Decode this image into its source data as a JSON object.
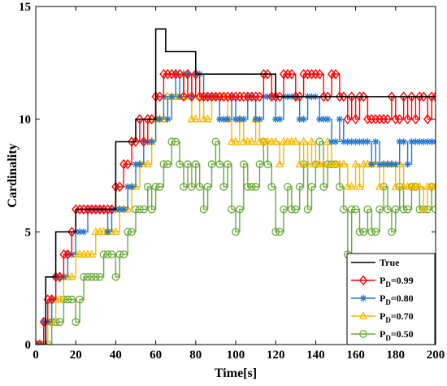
{
  "chart_data": {
    "type": "line",
    "xlabel": "Time[s]",
    "ylabel": "Cardinality",
    "xlim": [
      0,
      200
    ],
    "ylim": [
      0,
      15
    ],
    "xticks": [
      "0",
      "20",
      "40",
      "60",
      "80",
      "100",
      "120",
      "140",
      "160",
      "180",
      "200"
    ],
    "yticks": [
      "0",
      "5",
      "10",
      "15"
    ],
    "grid": false,
    "legend_position": "bottom-right",
    "series": [
      {
        "name": "True",
        "color": "#000000",
        "marker": "none",
        "x": [
          0,
          5,
          5,
          10,
          10,
          20,
          20,
          40,
          40,
          50,
          50,
          60,
          60,
          65,
          65,
          80,
          80,
          120,
          120,
          150,
          150,
          200
        ],
        "y": [
          0,
          0,
          3,
          3,
          5,
          5,
          6,
          6,
          9,
          9,
          10,
          10,
          14,
          14,
          13,
          13,
          12,
          12,
          11,
          11,
          11,
          11
        ]
      },
      {
        "name": "P_D=0.99",
        "color": "#ff0000",
        "marker": "diamond",
        "x": [
          0,
          2,
          4,
          6,
          8,
          10,
          12,
          14,
          16,
          18,
          20,
          22,
          24,
          26,
          28,
          30,
          32,
          34,
          36,
          38,
          40,
          42,
          44,
          46,
          48,
          50,
          52,
          54,
          56,
          58,
          60,
          62,
          64,
          66,
          68,
          70,
          72,
          74,
          76,
          78,
          80,
          82,
          84,
          86,
          88,
          90,
          92,
          94,
          96,
          98,
          100,
          102,
          104,
          106,
          108,
          110,
          112,
          114,
          116,
          118,
          120,
          122,
          124,
          126,
          128,
          130,
          132,
          134,
          136,
          138,
          140,
          142,
          144,
          146,
          148,
          150,
          152,
          154,
          156,
          158,
          160,
          162,
          164,
          166,
          168,
          170,
          172,
          174,
          176,
          178,
          180,
          182,
          184,
          186,
          188,
          190,
          192,
          194,
          196,
          198,
          200
        ],
        "y": [
          0,
          0,
          1,
          2,
          2,
          3,
          3,
          4,
          4,
          5,
          6,
          6,
          6,
          6,
          6,
          6,
          6,
          6,
          6,
          6,
          7,
          7,
          8,
          8,
          9,
          9,
          10,
          9,
          10,
          10,
          11,
          11,
          12,
          12,
          12,
          12,
          12,
          11,
          12,
          11,
          12,
          11,
          11,
          11,
          11,
          11,
          11,
          11,
          11,
          11,
          11,
          11,
          11,
          11,
          11,
          11,
          11,
          12,
          12,
          11,
          11,
          11,
          12,
          12,
          12,
          11,
          11,
          12,
          12,
          12,
          12,
          12,
          11,
          11,
          12,
          12,
          11,
          11,
          10,
          11,
          10,
          11,
          11,
          10,
          10,
          10,
          10,
          10,
          10,
          11,
          10,
          10,
          11,
          10,
          11,
          10,
          11,
          11,
          10,
          11,
          11
        ]
      },
      {
        "name": "P_D=0.80",
        "color": "#1f77d4",
        "marker": "asterisk",
        "x": [
          0,
          2,
          4,
          6,
          8,
          10,
          12,
          14,
          16,
          18,
          20,
          22,
          24,
          26,
          28,
          30,
          32,
          34,
          36,
          38,
          40,
          42,
          44,
          46,
          48,
          50,
          52,
          54,
          56,
          58,
          60,
          62,
          64,
          66,
          68,
          70,
          72,
          74,
          76,
          78,
          80,
          82,
          84,
          86,
          88,
          90,
          92,
          94,
          96,
          98,
          100,
          102,
          104,
          106,
          108,
          110,
          112,
          114,
          116,
          118,
          120,
          122,
          124,
          126,
          128,
          130,
          132,
          134,
          136,
          138,
          140,
          142,
          144,
          146,
          148,
          150,
          152,
          154,
          156,
          158,
          160,
          162,
          164,
          166,
          168,
          170,
          172,
          174,
          176,
          178,
          180,
          182,
          184,
          186,
          188,
          190,
          192,
          194,
          196,
          198,
          200
        ],
        "y": [
          0,
          0,
          1,
          1,
          2,
          3,
          3,
          3,
          4,
          4,
          5,
          5,
          5,
          6,
          6,
          6,
          6,
          6,
          5,
          6,
          6,
          6,
          6,
          7,
          7,
          8,
          8,
          9,
          9,
          9,
          10,
          10,
          11,
          10,
          11,
          12,
          11,
          12,
          12,
          11,
          12,
          12,
          11,
          11,
          11,
          11,
          10,
          10,
          10,
          11,
          10,
          10,
          10,
          11,
          11,
          10,
          10,
          11,
          11,
          11,
          10,
          10,
          11,
          11,
          11,
          11,
          10,
          10,
          11,
          11,
          11,
          10,
          10,
          10,
          9,
          9,
          10,
          9,
          9,
          9,
          9,
          9,
          9,
          9,
          8,
          9,
          8,
          8,
          8,
          8,
          8,
          9,
          9,
          8,
          9,
          9,
          9,
          9,
          9,
          9,
          9
        ]
      },
      {
        "name": "P_D=0.70",
        "color": "#f5b800",
        "marker": "triangle",
        "x": [
          0,
          2,
          4,
          6,
          8,
          10,
          12,
          14,
          16,
          18,
          20,
          22,
          24,
          26,
          28,
          30,
          32,
          34,
          36,
          38,
          40,
          42,
          44,
          46,
          48,
          50,
          52,
          54,
          56,
          58,
          60,
          62,
          64,
          66,
          68,
          70,
          72,
          74,
          76,
          78,
          80,
          82,
          84,
          86,
          88,
          90,
          92,
          94,
          96,
          98,
          100,
          102,
          104,
          106,
          108,
          110,
          112,
          114,
          116,
          118,
          120,
          122,
          124,
          126,
          128,
          130,
          132,
          134,
          136,
          138,
          140,
          142,
          144,
          146,
          148,
          150,
          152,
          154,
          156,
          158,
          160,
          162,
          164,
          166,
          168,
          170,
          172,
          174,
          176,
          178,
          180,
          182,
          184,
          186,
          188,
          190,
          192,
          194,
          196,
          198,
          200
        ],
        "y": [
          0,
          0,
          0,
          1,
          1,
          2,
          2,
          3,
          3,
          3,
          4,
          4,
          4,
          4,
          4,
          5,
          5,
          5,
          5,
          5,
          5,
          6,
          6,
          6,
          7,
          7,
          8,
          8,
          8,
          9,
          10,
          10,
          10,
          11,
          11,
          11,
          11,
          12,
          11,
          10,
          10,
          11,
          10,
          10,
          11,
          11,
          11,
          11,
          10,
          9,
          9,
          10,
          9,
          9,
          9,
          10,
          9,
          9,
          9,
          9,
          9,
          8,
          9,
          9,
          9,
          9,
          8,
          9,
          8,
          9,
          8,
          8,
          8,
          9,
          8,
          8,
          8,
          8,
          7,
          7,
          8,
          7,
          8,
          8,
          8,
          8,
          7,
          8,
          8,
          8,
          7,
          8,
          7,
          7,
          7,
          7,
          7,
          6,
          7,
          7,
          7
        ]
      },
      {
        "name": "P_D=0.50",
        "color": "#6aaa3a",
        "marker": "circle",
        "x": [
          0,
          2,
          4,
          6,
          8,
          10,
          12,
          14,
          16,
          18,
          20,
          22,
          24,
          26,
          28,
          30,
          32,
          34,
          36,
          38,
          40,
          42,
          44,
          46,
          48,
          50,
          52,
          54,
          56,
          58,
          60,
          62,
          64,
          66,
          68,
          70,
          72,
          74,
          76,
          78,
          80,
          82,
          84,
          86,
          88,
          90,
          92,
          94,
          96,
          98,
          100,
          102,
          104,
          106,
          108,
          110,
          112,
          114,
          116,
          118,
          120,
          122,
          124,
          126,
          128,
          130,
          132,
          134,
          136,
          138,
          140,
          142,
          144,
          146,
          148,
          150,
          152,
          154,
          156,
          158,
          160,
          162,
          164,
          166,
          168,
          170,
          172,
          174,
          176,
          178,
          180,
          182,
          184,
          186,
          188,
          190,
          192,
          194,
          196,
          198,
          200
        ],
        "y": [
          0,
          0,
          0,
          0,
          1,
          1,
          1,
          2,
          2,
          2,
          1,
          2,
          3,
          3,
          3,
          3,
          3,
          4,
          4,
          4,
          3,
          4,
          4,
          5,
          5,
          6,
          6,
          6,
          7,
          6,
          7,
          7,
          8,
          8,
          9,
          9,
          8,
          7,
          8,
          7,
          8,
          7,
          6,
          7,
          8,
          9,
          8,
          7,
          8,
          6,
          5,
          6,
          8,
          7,
          7,
          7,
          8,
          9,
          8,
          7,
          5,
          5,
          6,
          7,
          6,
          6,
          7,
          8,
          6,
          7,
          8,
          9,
          7,
          8,
          8,
          8,
          7,
          6,
          4,
          6,
          6,
          5,
          5,
          6,
          5,
          5,
          6,
          7,
          6,
          5,
          6,
          7,
          6,
          6,
          7,
          7,
          6,
          6,
          6,
          7,
          6
        ]
      }
    ]
  }
}
